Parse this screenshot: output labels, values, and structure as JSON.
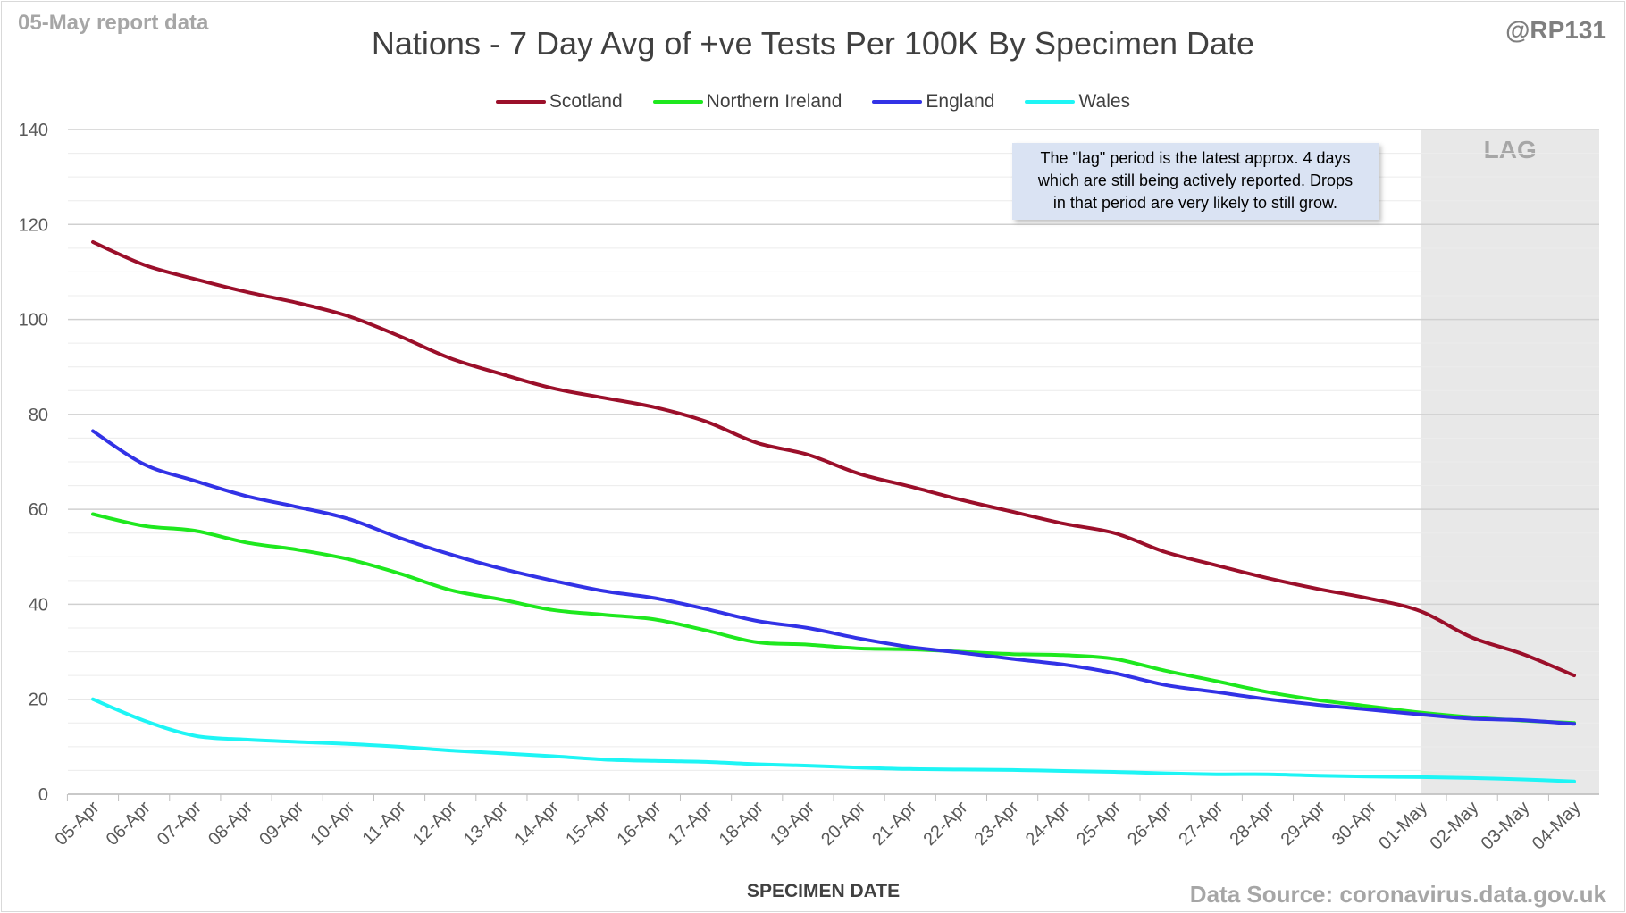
{
  "header": {
    "report_date": "05-May report data",
    "handle": "@RP131",
    "source": "Data Source: coronavirus.data.gov.uk"
  },
  "annotation": {
    "lag_label": "LAG",
    "note_line1": "The \"lag\" period is the latest approx. 4 days",
    "note_line2": "which are still being actively reported. Drops",
    "note_line3": "in that period are very likely to still grow."
  },
  "chart_data": {
    "type": "line",
    "title": "Nations - 7 Day Avg of +ve Tests Per 100K By Specimen Date",
    "xlabel": "SPECIMEN DATE",
    "ylabel": "",
    "ylim": [
      0,
      140
    ],
    "yticks": [
      0,
      20,
      40,
      60,
      80,
      100,
      120,
      140
    ],
    "grid": true,
    "legend_position": "top-center",
    "lag_start": "01-May",
    "x": [
      "05-Apr",
      "06-Apr",
      "07-Apr",
      "08-Apr",
      "09-Apr",
      "10-Apr",
      "11-Apr",
      "12-Apr",
      "13-Apr",
      "14-Apr",
      "15-Apr",
      "16-Apr",
      "17-Apr",
      "18-Apr",
      "19-Apr",
      "20-Apr",
      "21-Apr",
      "22-Apr",
      "23-Apr",
      "24-Apr",
      "25-Apr",
      "26-Apr",
      "27-Apr",
      "28-Apr",
      "29-Apr",
      "30-Apr",
      "01-May",
      "02-May",
      "03-May",
      "04-May"
    ],
    "series": [
      {
        "name": "Scotland",
        "color": "#9b0f2a",
        "values": [
          116.3,
          111.5,
          108.5,
          105.8,
          103.5,
          100.7,
          96.5,
          91.8,
          88.5,
          85.5,
          83.5,
          81.5,
          78.5,
          74.0,
          71.5,
          67.5,
          64.8,
          62.0,
          59.5,
          57.0,
          55.0,
          51.0,
          48.2,
          45.5,
          43.2,
          41.2,
          38.5,
          33.0,
          29.5,
          25.0
        ]
      },
      {
        "name": "Northern Ireland",
        "color": "#1ee81e",
        "values": [
          59.0,
          56.5,
          55.5,
          53.0,
          51.5,
          49.5,
          46.5,
          43.0,
          41.0,
          38.8,
          37.8,
          36.8,
          34.5,
          32.0,
          31.5,
          30.7,
          30.5,
          30.0,
          29.5,
          29.3,
          28.5,
          26.0,
          23.8,
          21.5,
          19.8,
          18.5,
          17.2,
          16.2,
          15.5,
          15.0
        ]
      },
      {
        "name": "England",
        "color": "#3232e6",
        "values": [
          76.5,
          69.5,
          66.0,
          62.8,
          60.5,
          58.0,
          54.0,
          50.5,
          47.5,
          45.0,
          42.8,
          41.3,
          39.0,
          36.5,
          35.0,
          32.8,
          31.0,
          29.8,
          28.5,
          27.3,
          25.5,
          23.0,
          21.5,
          20.0,
          18.8,
          17.8,
          16.8,
          15.9,
          15.6,
          14.8
        ]
      },
      {
        "name": "Wales",
        "color": "#1ef5f5",
        "values": [
          20.0,
          15.5,
          12.3,
          11.5,
          11.0,
          10.6,
          10.0,
          9.2,
          8.6,
          8.0,
          7.3,
          7.0,
          6.8,
          6.3,
          6.0,
          5.6,
          5.3,
          5.2,
          5.1,
          4.9,
          4.7,
          4.4,
          4.2,
          4.2,
          3.9,
          3.7,
          3.6,
          3.4,
          3.1,
          2.7
        ]
      }
    ]
  }
}
